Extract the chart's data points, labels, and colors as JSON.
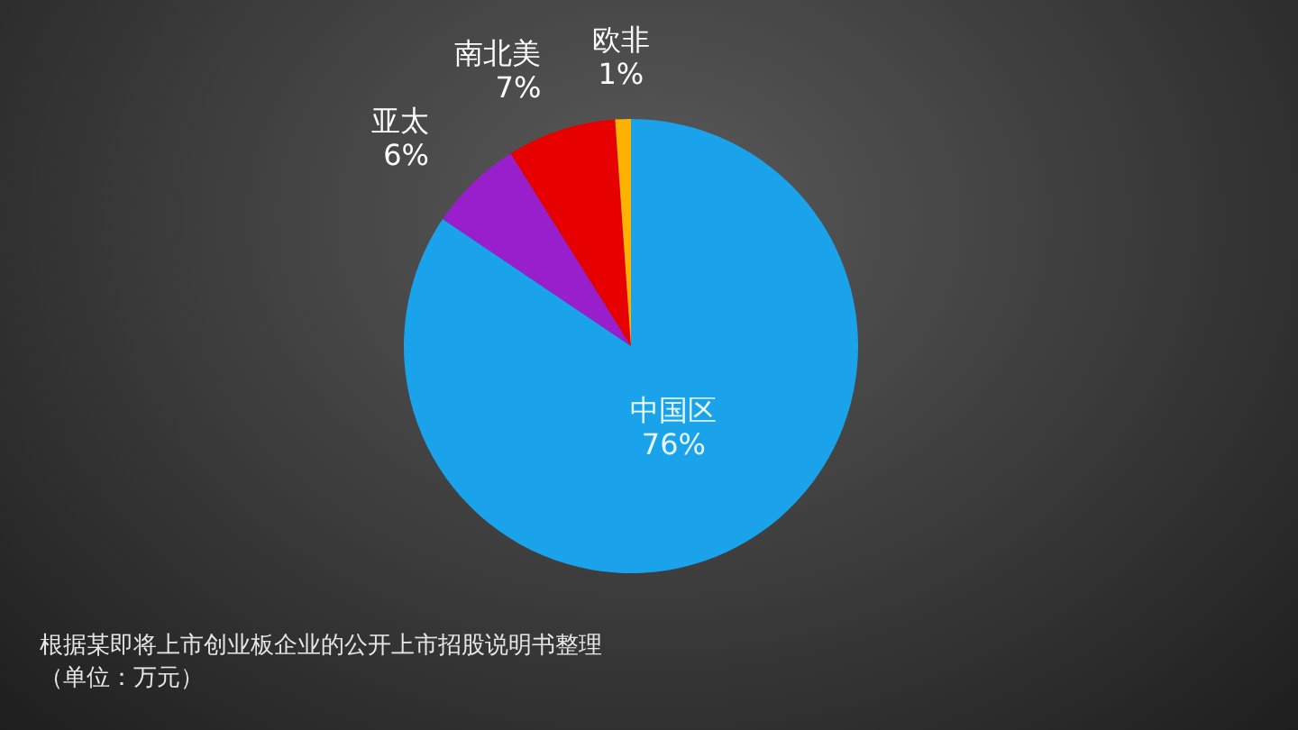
{
  "chart_data": {
    "type": "pie",
    "categories": [
      "中国区",
      "亚太",
      "南北美",
      "欧非"
    ],
    "values": [
      76,
      6,
      7,
      1
    ],
    "value_labels": [
      "76%",
      "6%",
      "7%",
      "1%"
    ],
    "colors": [
      "#1aa3ea",
      "#9a1fcc",
      "#e60000",
      "#ffb300"
    ],
    "annotations": [
      "根据某即将上市创业板企业的公开上市招股说明书整理",
      "（单位：万元）"
    ]
  }
}
